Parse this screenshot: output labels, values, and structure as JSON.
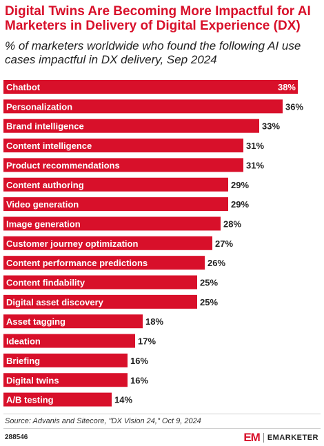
{
  "chart_data": {
    "type": "bar",
    "orientation": "horizontal",
    "title": "Digital Twins Are Becoming More Impactful for AI Marketers in Delivery of Digital Experience (DX)",
    "subtitle": "% of marketers worldwide who found the following AI use cases impactful in DX delivery, Sep 2024",
    "categories": [
      "Chatbot",
      "Personalization",
      "Brand intelligence",
      "Content intelligence",
      "Product recommendations",
      "Content authoring",
      "Video generation",
      "Image generation",
      "Customer journey optimization",
      "Content performance predictions",
      "Content findability",
      "Digital asset discovery",
      "Asset tagging",
      "Ideation",
      "Briefing",
      "Digital twins",
      "A/B testing"
    ],
    "values": [
      38,
      36,
      33,
      31,
      31,
      29,
      29,
      28,
      27,
      26,
      25,
      25,
      18,
      17,
      16,
      16,
      14
    ],
    "value_labels": [
      "38%",
      "36%",
      "33%",
      "31%",
      "31%",
      "29%",
      "29%",
      "28%",
      "27%",
      "26%",
      "25%",
      "25%",
      "18%",
      "17%",
      "16%",
      "16%",
      "14%"
    ],
    "xlim": [
      0,
      38
    ],
    "grid": false,
    "bar_color": "#d8102a"
  },
  "source": "Source: Advanis and Sitecore, \"DX Vision 24,\" Oct 9, 2024",
  "chart_id": "288546",
  "brand": "EMARKETER",
  "colors": {
    "accent": "#d8102a",
    "text": "#222222"
  }
}
